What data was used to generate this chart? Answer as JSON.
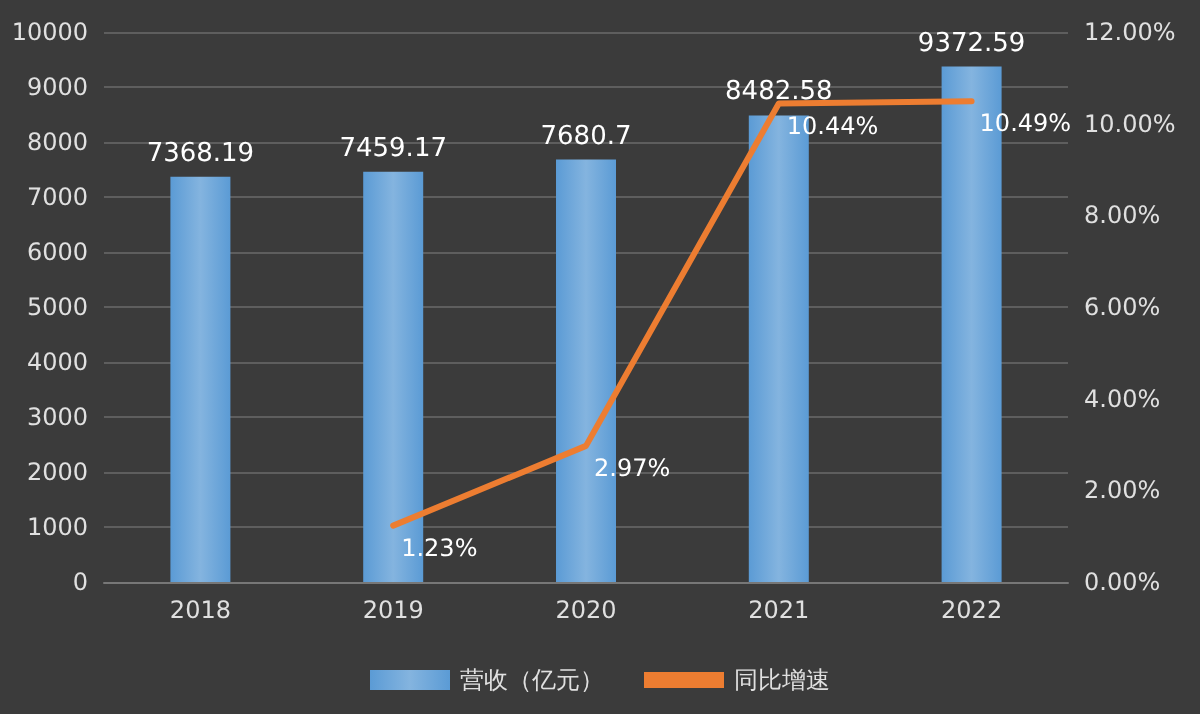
{
  "chart_data": {
    "type": "bar",
    "categories": [
      "2018",
      "2019",
      "2020",
      "2021",
      "2022"
    ],
    "series": [
      {
        "name": "营收（亿元）",
        "color": "#5b9bd5",
        "values": [
          7368.19,
          7459.17,
          7680.7,
          8482.58,
          9372.59
        ],
        "value_labels": [
          "7368.19",
          "7459.17",
          "7680.7",
          "8482.58",
          "9372.59"
        ]
      },
      {
        "name": "同比增速",
        "type": "line",
        "axis": "y2",
        "color": "#ed7d31",
        "values": [
          null,
          1.23,
          2.97,
          10.44,
          10.49
        ],
        "value_labels": [
          null,
          "1.23%",
          "2.97%",
          "10.44%",
          "10.49%"
        ]
      }
    ],
    "ylim": [
      0,
      10000
    ],
    "yticks": [
      0,
      1000,
      2000,
      3000,
      4000,
      5000,
      6000,
      7000,
      8000,
      9000,
      10000
    ],
    "y2lim": [
      0,
      12
    ],
    "y2ticks": [
      {
        "value": 0,
        "label": "0.00%"
      },
      {
        "value": 2,
        "label": "2.00%"
      },
      {
        "value": 4,
        "label": "4.00%"
      },
      {
        "value": 6,
        "label": "6.00%"
      },
      {
        "value": 8,
        "label": "8.00%"
      },
      {
        "value": 10,
        "label": "10.00%"
      },
      {
        "value": 12,
        "label": "12.00%"
      }
    ],
    "grid": "y",
    "legend": "bottom",
    "marker": "none",
    "line_style": "solid"
  }
}
